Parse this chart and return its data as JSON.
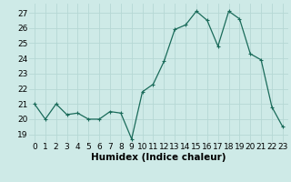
{
  "x": [
    0,
    1,
    2,
    3,
    4,
    5,
    6,
    7,
    8,
    9,
    10,
    11,
    12,
    13,
    14,
    15,
    16,
    17,
    18,
    19,
    20,
    21,
    22,
    23
  ],
  "y": [
    21,
    20,
    21,
    20.3,
    20.4,
    20,
    20,
    20.5,
    20.4,
    18.7,
    21.8,
    22.3,
    23.8,
    25.9,
    26.2,
    27.1,
    26.5,
    24.8,
    27.1,
    26.6,
    24.3,
    23.9,
    20.8,
    19.5
  ],
  "line_color": "#1a6b5a",
  "marker": "+",
  "marker_size": 3,
  "marker_linewidth": 0.8,
  "xlabel": "Humidex (Indice chaleur)",
  "xlabel_fontsize": 7.5,
  "ylabel_ticks": [
    19,
    20,
    21,
    22,
    23,
    24,
    25,
    26,
    27
  ],
  "ylim": [
    18.5,
    27.6
  ],
  "xlim": [
    -0.5,
    23.5
  ],
  "bg_color": "#ceeae7",
  "grid_color": "#b5d8d4",
  "tick_fontsize": 6.5,
  "linewidth": 0.9
}
